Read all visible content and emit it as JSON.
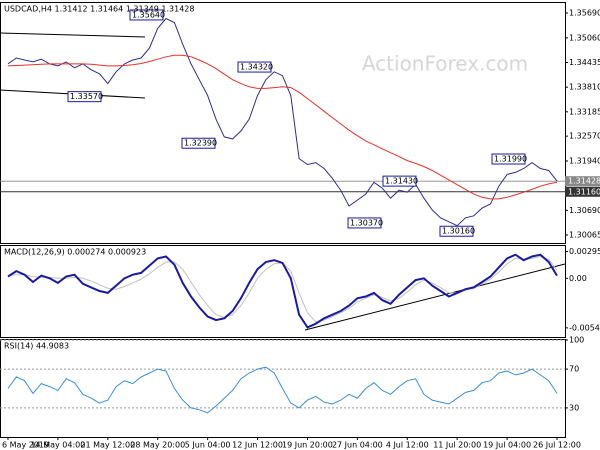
{
  "chart_data": [
    {
      "type": "line",
      "title": "USDCAD,H4  1.31412 1.31464 1.31349 1.31428",
      "watermark": "ActionForex.com",
      "ylim": [
        1.29862,
        1.35943
      ],
      "yticks": [
        {
          "value": 1.3569,
          "label": "1.35690"
        },
        {
          "value": 1.3506,
          "label": "1.35060"
        },
        {
          "value": 1.34435,
          "label": "1.34435"
        },
        {
          "value": 1.3381,
          "label": "1.33810"
        },
        {
          "value": 1.33185,
          "label": "1.33185"
        },
        {
          "value": 1.3257,
          "label": "1.32570"
        },
        {
          "value": 1.3194,
          "label": "1.31940"
        },
        {
          "value": 1.3069,
          "label": "1.30690"
        },
        {
          "value": 1.30065,
          "label": "1.30065"
        }
      ],
      "grid": false,
      "series": [
        {
          "color": "#2e2e8c",
          "values": [
            1.344,
            1.3455,
            1.345,
            1.3445,
            1.3452,
            1.344,
            1.3435,
            1.3445,
            1.343,
            1.344,
            1.3425,
            1.3415,
            1.339,
            1.342,
            1.344,
            1.345,
            1.3455,
            1.348,
            1.353,
            1.3555,
            1.3545,
            1.349,
            1.344,
            1.34,
            1.336,
            1.33,
            1.3255,
            1.325,
            1.327,
            1.33,
            1.336,
            1.34,
            1.342,
            1.341,
            1.336,
            1.32,
            1.3185,
            1.319,
            1.3175,
            1.315,
            1.312,
            1.308,
            1.3095,
            1.311,
            1.314,
            1.3125,
            1.31,
            1.312,
            1.3115,
            1.3135,
            1.31,
            1.307,
            1.305,
            1.304,
            1.303,
            1.305,
            1.3055,
            1.3075,
            1.3085,
            1.313,
            1.316,
            1.3165,
            1.3175,
            1.319,
            1.3175,
            1.317,
            1.3143
          ]
        },
        {
          "color": "#e8302a",
          "values": [
            1.3435,
            1.3436,
            1.3437,
            1.3438,
            1.3439,
            1.344,
            1.344,
            1.344,
            1.344,
            1.344,
            1.3439,
            1.3437,
            1.3435,
            1.3435,
            1.3436,
            1.3438,
            1.3441,
            1.3446,
            1.3452,
            1.3458,
            1.3462,
            1.3462,
            1.3458,
            1.345,
            1.344,
            1.3428,
            1.3414,
            1.34,
            1.339,
            1.3382,
            1.3378,
            1.3378,
            1.338,
            1.3382,
            1.338,
            1.3368,
            1.3352,
            1.3336,
            1.332,
            1.3304,
            1.3288,
            1.3272,
            1.3258,
            1.3245,
            1.3235,
            1.3225,
            1.3215,
            1.3205,
            1.3195,
            1.3188,
            1.318,
            1.317,
            1.3158,
            1.3146,
            1.3134,
            1.3122,
            1.311,
            1.3102,
            1.3098,
            1.3098,
            1.3102,
            1.3108,
            1.3115,
            1.3122,
            1.313,
            1.3136,
            1.314
          ]
        }
      ],
      "hlines": [
        {
          "value": 1.31428,
          "label": "1.31428",
          "color": "#888888"
        },
        {
          "value": 1.3116,
          "label": "1.31160",
          "color": "#333333"
        }
      ],
      "annotations": [
        {
          "value": 1.3564,
          "label": "1.35640"
        },
        {
          "value": 1.3432,
          "label": "1.34320"
        },
        {
          "value": 1.3357,
          "label": "1.33570"
        },
        {
          "value": 1.3239,
          "label": "1.32390"
        },
        {
          "value": 1.3199,
          "label": "1.31990"
        },
        {
          "value": 1.3143,
          "label": "1.31430"
        },
        {
          "value": 1.3037,
          "label": "1.30370"
        },
        {
          "value": 1.3016,
          "label": "1.30160"
        }
      ]
    },
    {
      "type": "line",
      "title": "MACD(12,26,9) 0.000274 0.000923",
      "ylim": [
        -0.00646,
        0.00356
      ],
      "yticks": [
        {
          "value": 0.00295,
          "label": "0.00295"
        },
        {
          "value": 0,
          "label": "0.00"
        },
        {
          "value": -0.005455,
          "label": "-0.005455"
        }
      ],
      "grid": false,
      "series": [
        {
          "color": "#c0c0c0",
          "values": [
            0.0003,
            0.0004,
            0.0004,
            0.0002,
            0.0001,
            0.0001,
            0.0,
            0.0,
            0.0001,
            0.0,
            -0.0003,
            -0.0007,
            -0.0011,
            -0.0012,
            -0.0009,
            -0.0005,
            -0.0001,
            0.0005,
            0.0012,
            0.0018,
            0.0018,
            0.001,
            -0.0004,
            -0.0018,
            -0.003,
            -0.004,
            -0.0043,
            -0.004,
            -0.003,
            -0.0016,
            0.0,
            0.001,
            0.0016,
            0.0017,
            0.0008,
            -0.0016,
            -0.0038,
            -0.0048,
            -0.0046,
            -0.0042,
            -0.0038,
            -0.0033,
            -0.0026,
            -0.0022,
            -0.0018,
            -0.0021,
            -0.0025,
            -0.0022,
            -0.0015,
            -0.0007,
            -0.0002,
            -0.0005,
            -0.001,
            -0.0016,
            -0.0016,
            -0.0013,
            -0.0011,
            -0.0006,
            -0.0001,
            0.0007,
            0.0016,
            0.0022,
            0.0021,
            0.0022,
            0.0024,
            0.0021,
            0.0009
          ]
        },
        {
          "color": "#1a1aa0",
          "values": [
            0.0002,
            0.0008,
            0.0004,
            -0.0004,
            0.0003,
            0.0,
            -0.0005,
            0.0002,
            0.0004,
            -0.0006,
            -0.001,
            -0.0014,
            -0.0016,
            -0.0008,
            0.0,
            0.0004,
            0.0006,
            0.0014,
            0.0022,
            0.0024,
            0.0015,
            -0.0005,
            -0.002,
            -0.0032,
            -0.0042,
            -0.0046,
            -0.0044,
            -0.0036,
            -0.0022,
            -0.0005,
            0.001,
            0.0018,
            0.002,
            0.0017,
            0.0,
            -0.004,
            -0.0054,
            -0.005,
            -0.0044,
            -0.004,
            -0.0036,
            -0.003,
            -0.0022,
            -0.002,
            -0.0016,
            -0.0024,
            -0.0028,
            -0.0018,
            -0.001,
            -0.0002,
            0.0,
            -0.0008,
            -0.0014,
            -0.002,
            -0.0016,
            -0.0012,
            -0.001,
            -0.0004,
            0.0002,
            0.0012,
            0.0022,
            0.0026,
            0.002,
            0.0024,
            0.0026,
            0.0018,
            0.0003
          ]
        }
      ]
    },
    {
      "type": "line",
      "title": "RSI(14) 44.9083",
      "ylim": [
        0,
        100
      ],
      "yticks": [
        100,
        70,
        30
      ],
      "grid": true,
      "categories": [
        "6 May 2019",
        null,
        null,
        null,
        null,
        null,
        "14 May 04:00",
        null,
        null,
        null,
        null,
        null,
        "21 May 12:00",
        null,
        null,
        null,
        null,
        null,
        "28 May 20:00",
        null,
        null,
        null,
        null,
        null,
        "5 Jun 04:00",
        null,
        null,
        null,
        null,
        null,
        "12 Jun 12:00",
        null,
        null,
        null,
        null,
        null,
        "19 Jun 20:00",
        null,
        null,
        null,
        null,
        null,
        "27 Jun 04:00",
        null,
        null,
        null,
        null,
        null,
        "4 Jul 12:00",
        null,
        null,
        null,
        null,
        null,
        "11 Jul 20:00",
        null,
        null,
        null,
        null,
        null,
        "19 Jul 04:00",
        null,
        null,
        null,
        null,
        null,
        "26 Jul 12:00"
      ],
      "series": [
        {
          "color": "#3a8fd8",
          "values": [
            50,
            62,
            58,
            45,
            55,
            52,
            48,
            60,
            56,
            44,
            40,
            35,
            38,
            52,
            58,
            55,
            62,
            66,
            70,
            68,
            50,
            38,
            30,
            28,
            25,
            32,
            40,
            48,
            60,
            66,
            70,
            72,
            66,
            50,
            35,
            30,
            38,
            42,
            36,
            34,
            38,
            44,
            40,
            50,
            56,
            48,
            44,
            52,
            58,
            60,
            44,
            38,
            36,
            34,
            40,
            46,
            48,
            56,
            58,
            66,
            68,
            64,
            66,
            70,
            64,
            58,
            45
          ]
        }
      ]
    }
  ]
}
